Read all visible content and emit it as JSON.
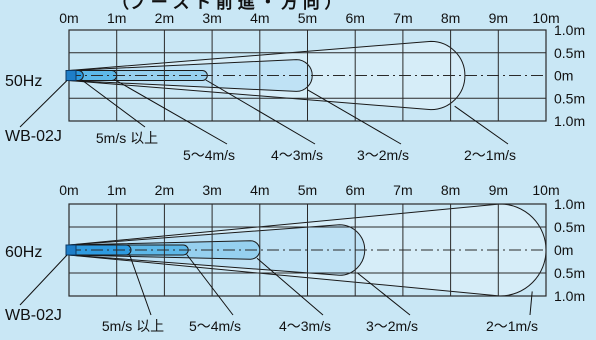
{
  "header_fragment": "（ブ ー ス ト 前 進 ・ 方 向 ）",
  "model": "WB-02J",
  "distance_unit_labels": [
    "0m",
    "1m",
    "2m",
    "3m",
    "4m",
    "5m",
    "6m",
    "7m",
    "8m",
    "9m",
    "10m"
  ],
  "width_labels": [
    "1.0m",
    "0.5m",
    "0m",
    "0.5m",
    "1.0m"
  ],
  "colors": {
    "background": "#c9e7f5",
    "grid": "#2a2a2a",
    "zone_palest": "#d6edf8",
    "zone_pale": "#bfe2f5",
    "zone_mid": "#96d0ef",
    "zone_deep": "#5db8e8",
    "zone_deepest": "#2e9be0",
    "nozzle": "#1e7ec8"
  },
  "charts": [
    {
      "frequency": "50Hz",
      "zones": [
        {
          "label": "2〜1m/s",
          "reach_m": 8.3,
          "half_width_m": 0.75
        },
        {
          "label": "3〜2m/s",
          "reach_m": 5.1,
          "half_width_m": 0.35
        },
        {
          "label": "4〜3m/s",
          "reach_m": 2.9,
          "half_width_m": 0.1
        },
        {
          "label": "5〜4m/s",
          "reach_m": 1.0,
          "half_width_m": 0.07
        },
        {
          "label": "5m/s 以上",
          "reach_m": 0.3,
          "half_width_m": 0.06
        }
      ]
    },
    {
      "frequency": "60Hz",
      "zones": [
        {
          "label": "2〜1m/s",
          "reach_m": 10.0,
          "half_width_m": 1.0
        },
        {
          "label": "3〜2m/s",
          "reach_m": 6.2,
          "half_width_m": 0.55
        },
        {
          "label": "4〜3m/s",
          "reach_m": 4.0,
          "half_width_m": 0.2
        },
        {
          "label": "5〜4m/s",
          "reach_m": 2.5,
          "half_width_m": 0.1
        },
        {
          "label": "5m/s 以上",
          "reach_m": 1.3,
          "half_width_m": 0.07
        }
      ]
    }
  ]
}
